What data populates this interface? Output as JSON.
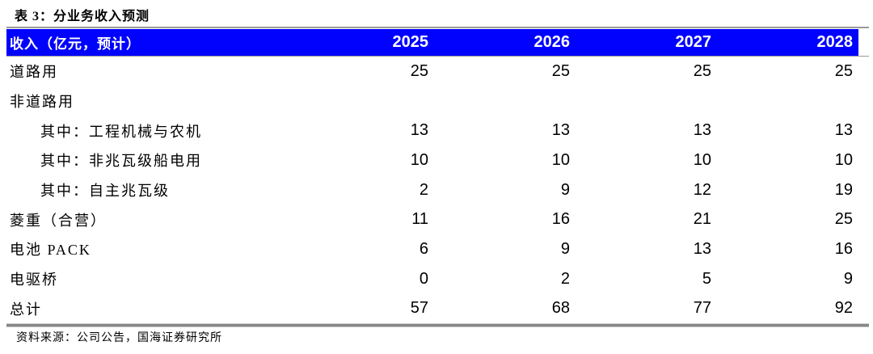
{
  "title": "表 3：分业务收入预测",
  "table": {
    "header": {
      "label": "收入（亿元，预计）",
      "years": [
        "2025",
        "2026",
        "2027",
        "2028"
      ]
    },
    "rows": [
      {
        "label": "道路用",
        "indent": false,
        "values": [
          "25",
          "25",
          "25",
          "25"
        ]
      },
      {
        "label": "非道路用",
        "indent": false,
        "values": [
          "",
          "",
          "",
          ""
        ]
      },
      {
        "label": "其中：工程机械与农机",
        "indent": true,
        "values": [
          "13",
          "13",
          "13",
          "13"
        ]
      },
      {
        "label": "其中：非兆瓦级船电用",
        "indent": true,
        "values": [
          "10",
          "10",
          "10",
          "10"
        ]
      },
      {
        "label": "其中：自主兆瓦级",
        "indent": true,
        "values": [
          "2",
          "9",
          "12",
          "19"
        ]
      },
      {
        "label": "菱重（合营）",
        "indent": false,
        "values": [
          "11",
          "16",
          "21",
          "25"
        ]
      },
      {
        "label": "电池 PACK",
        "indent": false,
        "values": [
          "6",
          "9",
          "13",
          "16"
        ]
      },
      {
        "label": "电驱桥",
        "indent": false,
        "values": [
          "0",
          "2",
          "5",
          "9"
        ]
      },
      {
        "label": "总计",
        "indent": false,
        "values": [
          "57",
          "68",
          "77",
          "92"
        ]
      }
    ]
  },
  "footer": {
    "source": "资料来源：公司公告，国海证券研究所"
  },
  "colors": {
    "header_bg": "#0101FE",
    "header_text": "#FFFFFF",
    "body_text": "#000000",
    "rule_gray": "#9A9A9A"
  }
}
